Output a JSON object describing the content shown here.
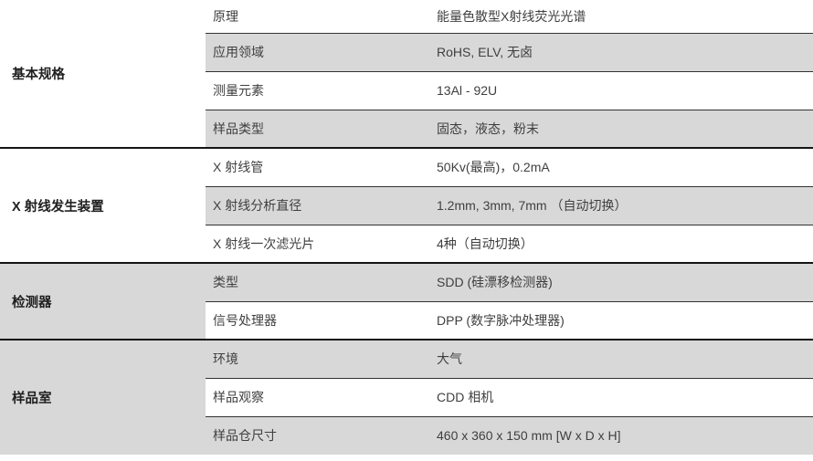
{
  "table": {
    "colors": {
      "stripe_gray": "#d8d8d8",
      "section_divider": "#141414",
      "row_divider": "#323232",
      "body_text": "#3f3f3f",
      "category_text": "#1f1f1f"
    },
    "columns": {
      "category": "",
      "parameter": "",
      "value": ""
    },
    "sections": [
      {
        "category": "基本规格",
        "rows": [
          {
            "param": "原理",
            "value": "能量色散型X射线荧光光谱"
          },
          {
            "param": "应用领域",
            "value": "RoHS, ELV, 无卤"
          },
          {
            "param": "测量元素",
            "value": "13Al - 92U"
          },
          {
            "param": "样品类型",
            "value": "固态，液态，粉末"
          }
        ]
      },
      {
        "category": "X 射线发生装置",
        "rows": [
          {
            "param": "X 射线管",
            "value": "50Kv(最高)，0.2mA"
          },
          {
            "param": "X 射线分析直径",
            "value": "1.2mm, 3mm, 7mm （自动切换）"
          },
          {
            "param": "X 射线一次滤光片",
            "value": "4种（自动切换）"
          }
        ]
      },
      {
        "category": "检测器",
        "rows": [
          {
            "param": "类型",
            "value": "SDD (硅漂移检测器)"
          },
          {
            "param": "信号处理器",
            "value": "DPP (数字脉冲处理器)"
          }
        ]
      },
      {
        "category": "样品室",
        "rows": [
          {
            "param": "环境",
            "value": "大气"
          },
          {
            "param": "样品观察",
            "value": "CDD 相机"
          },
          {
            "param": "样品仓尺寸",
            "value": "460 x 360 x 150 mm [W x D x H]"
          }
        ]
      }
    ]
  }
}
